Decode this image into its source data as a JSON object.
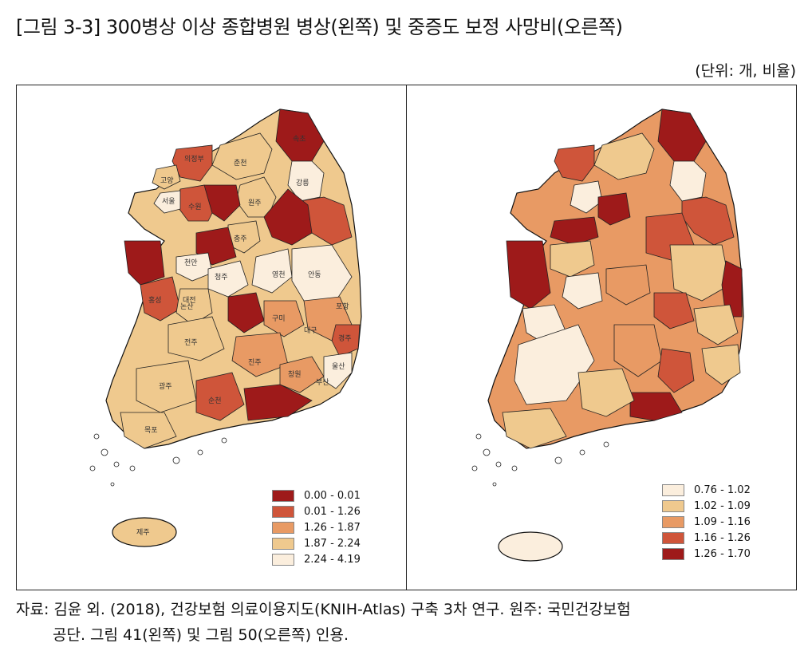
{
  "header": {
    "title": "[그림 3-3] 300병상 이상 종합병원 병상(왼쪽) 및 중증도 보정 사망비(오른쪽)",
    "unit": "(단위: 개, 비율)"
  },
  "left_map": {
    "legend": [
      {
        "label": "0.00 - 0.01",
        "color": "#9e1a1a"
      },
      {
        "label": "0.01 - 1.26",
        "color": "#cf553a"
      },
      {
        "label": "1.26 - 1.87",
        "color": "#e89a64"
      },
      {
        "label": "1.87 - 2.24",
        "color": "#efc98e"
      },
      {
        "label": "2.24 - 4.19",
        "color": "#fbeedd"
      }
    ],
    "region_labels": {
      "sokcho": "속초",
      "chuncheon": "춘천",
      "cheorwon": "의정부",
      "goyang": "고양",
      "seoul": "서울",
      "gangneung": "강릉",
      "wonju": "원주",
      "suwon": "수원",
      "chungju": "충주",
      "cheonan": "천안",
      "cheongju": "청주",
      "hongseong": "홍성",
      "nonsan": "논산",
      "daejeon": "대전",
      "jeonju": "전주",
      "andong": "안동",
      "gumi": "구미",
      "daegu": "대구",
      "gyeongju": "경주",
      "jinju": "진주",
      "changwon": "창원",
      "ulsan": "울산",
      "busan": "부산",
      "suncheon": "순천",
      "gwangju": "광주",
      "mokpo": "목포",
      "jeju": "제주",
      "pohang": "포항",
      "yeongcheon": "영천"
    }
  },
  "right_map": {
    "legend": [
      {
        "label": "0.76 - 1.02",
        "color": "#fbeedd"
      },
      {
        "label": "1.02 - 1.09",
        "color": "#efc98e"
      },
      {
        "label": "1.09 - 1.16",
        "color": "#e89a64"
      },
      {
        "label": "1.16 - 1.26",
        "color": "#cf553a"
      },
      {
        "label": "1.26 - 1.70",
        "color": "#9e1a1a"
      }
    ]
  },
  "source": {
    "line1": "자료: 김윤 외. (2018), 건강보험 의료이용지도(KNIH-Atlas) 구축 3차 연구. 원주: 국민건강보험",
    "line2": "공단. 그림 41(왼쪽) 및 그림 50(오른쪽) 인용."
  }
}
